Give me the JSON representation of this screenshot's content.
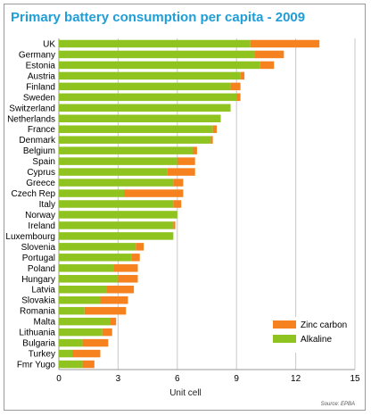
{
  "title": "Primary battery consumption per capita - 2009",
  "source": "Source: EPBA",
  "chart_data": {
    "type": "bar",
    "orientation": "horizontal",
    "stacked": true,
    "xlabel": "Unit cell",
    "xlim": [
      0,
      15
    ],
    "xticks": [
      0,
      3,
      6,
      9,
      12,
      15
    ],
    "grid": true,
    "legend_position": "bottom-right",
    "colors": {
      "Alkaline": "#8fc31f",
      "Zinc carbon": "#f5821f"
    },
    "categories": [
      "UK",
      "Germany",
      "Estonia",
      "Austria",
      "Finland",
      "Sweden",
      "Switzerland",
      "Netherlands",
      "France",
      "Denmark",
      "Belgium",
      "Spain",
      "Cyprus",
      "Greece",
      "Czech Rep",
      "Italy",
      "Norway",
      "Ireland",
      "Luxembourg",
      "Slovenia",
      "Portugal",
      "Poland",
      "Hungary",
      "Latvia",
      "Slovakia",
      "Romania",
      "Malta",
      "Lithuania",
      "Bulgaria",
      "Turkey",
      "Fmr Yugo"
    ],
    "series": [
      {
        "name": "Alkaline",
        "values": [
          9.7,
          9.9,
          10.2,
          9.2,
          8.7,
          9.0,
          8.7,
          8.2,
          7.8,
          7.7,
          6.8,
          6.0,
          5.5,
          5.8,
          3.3,
          5.8,
          6.0,
          5.8,
          5.8,
          3.9,
          3.7,
          2.8,
          3.0,
          2.4,
          2.1,
          1.3,
          2.6,
          2.2,
          1.2,
          0.7,
          1.2
        ]
      },
      {
        "name": "Zinc carbon",
        "values": [
          3.5,
          1.5,
          0.7,
          0.2,
          0.5,
          0.2,
          0.0,
          0.0,
          0.2,
          0.1,
          0.2,
          0.9,
          1.4,
          0.5,
          3.0,
          0.4,
          0.0,
          0.1,
          0.0,
          0.4,
          0.4,
          1.2,
          1.0,
          1.4,
          1.4,
          2.1,
          0.3,
          0.5,
          1.3,
          1.4,
          0.6
        ]
      }
    ],
    "legend": [
      "Zinc carbon",
      "Alkaline"
    ]
  }
}
